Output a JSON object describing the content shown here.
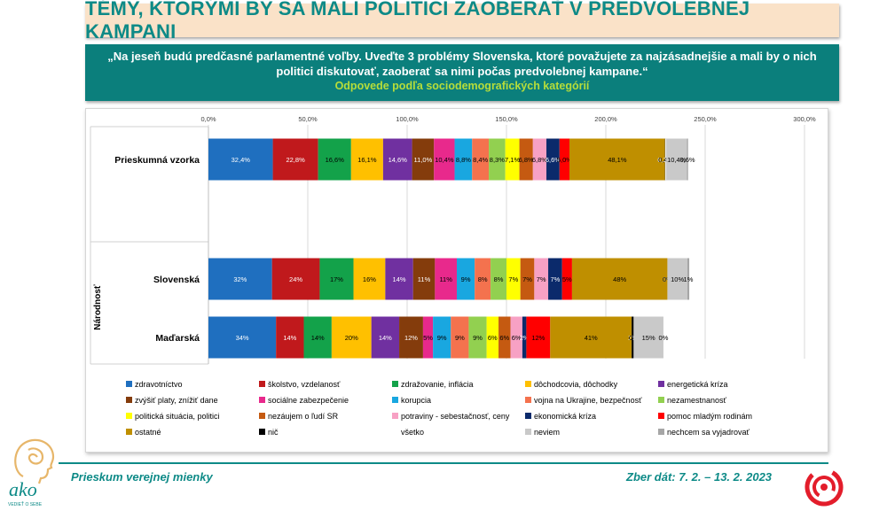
{
  "title": "TÉMY, KTORÝMI BY SA MALI POLITICI ZAOBERAŤ V PREDVOLEBNEJ KAMPANI",
  "question": "„Na jeseň budú predčasné parlamentné voľby. Uveďte 3 problémy Slovenska, ktoré považujete za najzásadnejšie a mali by o nich politici diskutovať, zaoberať sa nimi počas predvolebnej kampane.“",
  "subtitle": "Odpovede podľa sociodemografických kategórií",
  "footer": {
    "left": "Prieskum verejnej mienky",
    "right": "Zber dát: 7. 2. – 13. 2. 2023",
    "logo_text": "ako",
    "logo_sub": "VEDIEŤ O SEBE"
  },
  "chart_data": {
    "type": "bar",
    "orientation": "horizontal",
    "stacked": true,
    "xlim": [
      0,
      300
    ],
    "x_ticks": [
      "0,0%",
      "50,0%",
      "100,0%",
      "150,0%",
      "200,0%",
      "250,0%",
      "300,0%"
    ],
    "x_tick_values": [
      0,
      50,
      100,
      150,
      200,
      250,
      300
    ],
    "grid": true,
    "group_label": "Národnosť",
    "legend_position": "bottom",
    "categories": [
      "Prieskumná vzorka",
      "Slovenská",
      "Maďarská"
    ],
    "series": [
      {
        "name": "zdravotníctvo",
        "color": "#1f6fbf",
        "values": [
          32.4,
          32,
          34
        ],
        "labels": [
          "32,4%",
          "32%",
          "34%"
        ]
      },
      {
        "name": "školstvo, vzdelanosť",
        "color": "#c0191c",
        "values": [
          22.8,
          24,
          14
        ],
        "labels": [
          "22,8%",
          "24%",
          "14%"
        ]
      },
      {
        "name": "zdražovanie, inflácia",
        "color": "#13a24a",
        "values": [
          16.6,
          17,
          14
        ],
        "labels": [
          "16,6%",
          "17%",
          "14%"
        ]
      },
      {
        "name": "dôchodcovia, dôchodky",
        "color": "#ffc000",
        "values": [
          16.1,
          16,
          20
        ],
        "labels": [
          "16,1%",
          "16%",
          "20%"
        ]
      },
      {
        "name": "energetická kríza",
        "color": "#7030a0",
        "values": [
          14.6,
          14,
          14
        ],
        "labels": [
          "14,6%",
          "14%",
          "14%"
        ]
      },
      {
        "name": "zvýšiť platy, znížiť dane",
        "color": "#843c0c",
        "values": [
          11.0,
          11,
          12
        ],
        "labels": [
          "11,0%",
          "11%",
          "12%"
        ]
      },
      {
        "name": "sociálne zabezpečenie",
        "color": "#e8298c",
        "values": [
          10.4,
          11,
          5
        ],
        "labels": [
          "10,4%",
          "11%",
          "5%"
        ]
      },
      {
        "name": "korupcia",
        "color": "#19a7e0",
        "values": [
          8.8,
          9,
          9
        ],
        "labels": [
          "8,8%",
          "9%",
          "9%"
        ]
      },
      {
        "name": "vojna na Ukrajine, bezpečnosť",
        "color": "#f4724e",
        "values": [
          8.4,
          8,
          9
        ],
        "labels": [
          "8,4%",
          "8%",
          "9%"
        ]
      },
      {
        "name": "nezamestnanosť",
        "color": "#92d050",
        "values": [
          8.3,
          8,
          9
        ],
        "labels": [
          "8,3%",
          "8%",
          "9%"
        ]
      },
      {
        "name": "politická situácia, politici",
        "color": "#ffff00",
        "values": [
          7.1,
          7,
          6
        ],
        "labels": [
          "7,1%",
          "7%",
          "6%"
        ]
      },
      {
        "name": "nezáujem o ľudí SR",
        "color": "#c55a11",
        "values": [
          6.8,
          7,
          6
        ],
        "labels": [
          "6,8%",
          "7%",
          "6%"
        ]
      },
      {
        "name": "potraviny - sebestačnosť, ceny",
        "color": "#f7a1c4",
        "values": [
          6.8,
          7,
          6
        ],
        "labels": [
          "6,8%",
          "7%",
          "6%"
        ]
      },
      {
        "name": "ekonomická kríza",
        "color": "#0b2a6b",
        "values": [
          6.6,
          7,
          2
        ],
        "labels": [
          "6,6%",
          "7%",
          "2%"
        ]
      },
      {
        "name": "pomoc mladým rodinám",
        "color": "#ff0000",
        "values": [
          5.0,
          5,
          12
        ],
        "labels": [
          "5,0%",
          "5%",
          "12%"
        ]
      },
      {
        "name": "ostatné",
        "color": "#bf8f00",
        "values": [
          48.1,
          48,
          41
        ],
        "labels": [
          "48,1%",
          "48%",
          "41%"
        ]
      },
      {
        "name": "nič",
        "color": "#000000",
        "values": [
          0.2,
          0,
          1
        ],
        "labels": [
          "0,2%",
          "0%",
          "1%"
        ]
      },
      {
        "name": "všetko",
        "color": "#ffffff",
        "values": [
          0.4,
          0,
          0
        ],
        "labels": [
          "0,4%",
          "0%",
          "0%"
        ]
      },
      {
        "name": "neviem",
        "color": "#c9c9c9",
        "values": [
          10.4,
          10,
          15
        ],
        "labels": [
          "10,4%",
          "10%",
          "15%"
        ]
      },
      {
        "name": "nechcem sa vyjadrovať",
        "color": "#a6a6a6",
        "values": [
          0.6,
          1,
          0
        ],
        "labels": [
          "0,6%",
          "1%",
          "0%"
        ]
      }
    ]
  }
}
